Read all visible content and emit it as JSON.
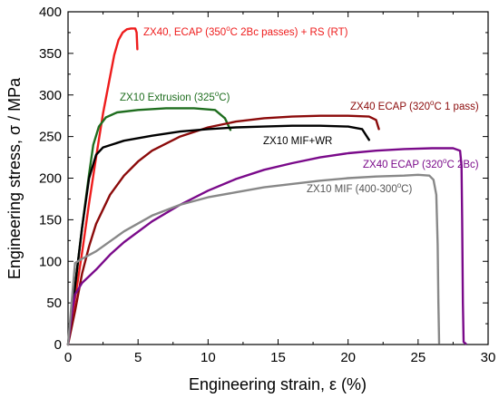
{
  "chart_data": {
    "type": "line",
    "xlabel": "Engineering strain, ε (%)",
    "ylabel": "Engineering stress, σ / MPa",
    "xlim": [
      0,
      30
    ],
    "ylim": [
      0,
      400
    ],
    "xticks": [
      0,
      5,
      10,
      15,
      20,
      25,
      30
    ],
    "yticks": [
      0,
      50,
      100,
      150,
      200,
      250,
      300,
      350,
      400
    ],
    "grid": false,
    "legend": "none",
    "series": [
      {
        "name": "ZX40, ECAP (350°C 2Bc passes) + RS (RT)",
        "color": "#ee1c1c",
        "points": [
          [
            0,
            0
          ],
          [
            0.5,
            55
          ],
          [
            1,
            110
          ],
          [
            1.5,
            170
          ],
          [
            2,
            225
          ],
          [
            2.5,
            278
          ],
          [
            3,
            322
          ],
          [
            3.3,
            348
          ],
          [
            3.6,
            366
          ],
          [
            3.9,
            375
          ],
          [
            4.2,
            379
          ],
          [
            4.5,
            380
          ],
          [
            4.8,
            380
          ],
          [
            4.9,
            375
          ],
          [
            4.95,
            355
          ]
        ]
      },
      {
        "name": "ZX10 Extrusion (325°C)",
        "color": "#1f6e1f",
        "points": [
          [
            0,
            0
          ],
          [
            0.5,
            70
          ],
          [
            1,
            140
          ],
          [
            1.5,
            205
          ],
          [
            1.8,
            240
          ],
          [
            2.2,
            262
          ],
          [
            2.7,
            273
          ],
          [
            3.5,
            279
          ],
          [
            5,
            282
          ],
          [
            7,
            284
          ],
          [
            9,
            284
          ],
          [
            10.5,
            282
          ],
          [
            11.2,
            272
          ],
          [
            11.6,
            258
          ]
        ]
      },
      {
        "name": "ZX40 ECAP (320°C 1 pass)",
        "color": "#8b0a0a",
        "points": [
          [
            0,
            0
          ],
          [
            0.5,
            40
          ],
          [
            1,
            85
          ],
          [
            1.5,
            118
          ],
          [
            2,
            145
          ],
          [
            3,
            180
          ],
          [
            4,
            203
          ],
          [
            5,
            220
          ],
          [
            6,
            233
          ],
          [
            8,
            250
          ],
          [
            10,
            261
          ],
          [
            12,
            268
          ],
          [
            14,
            272
          ],
          [
            16,
            274
          ],
          [
            18,
            275
          ],
          [
            20,
            275
          ],
          [
            21.5,
            274
          ],
          [
            22,
            270
          ],
          [
            22.2,
            259
          ]
        ]
      },
      {
        "name": "ZX10 MIF+WR",
        "color": "#000000",
        "points": [
          [
            0,
            0
          ],
          [
            0.5,
            70
          ],
          [
            1,
            140
          ],
          [
            1.5,
            200
          ],
          [
            2,
            228
          ],
          [
            2.5,
            237
          ],
          [
            4,
            245
          ],
          [
            6,
            251
          ],
          [
            8,
            256
          ],
          [
            10,
            259
          ],
          [
            12,
            261
          ],
          [
            14,
            262
          ],
          [
            16,
            263
          ],
          [
            18,
            263
          ],
          [
            20,
            262
          ],
          [
            21,
            259
          ],
          [
            21.5,
            246
          ]
        ]
      },
      {
        "name": "ZX40 ECAP (320°C 2Bc)",
        "color": "#7a0a8a",
        "points": [
          [
            0,
            0
          ],
          [
            0.3,
            40
          ],
          [
            0.5,
            60
          ],
          [
            1,
            74
          ],
          [
            2,
            90
          ],
          [
            3,
            108
          ],
          [
            4,
            123
          ],
          [
            6,
            148
          ],
          [
            8,
            168
          ],
          [
            10,
            185
          ],
          [
            12,
            199
          ],
          [
            14,
            210
          ],
          [
            16,
            218
          ],
          [
            18,
            225
          ],
          [
            20,
            230
          ],
          [
            22,
            233
          ],
          [
            24,
            235
          ],
          [
            26,
            236
          ],
          [
            27.5,
            236
          ],
          [
            28,
            233
          ],
          [
            28.1,
            215
          ],
          [
            28.15,
            150
          ],
          [
            28.2,
            50
          ],
          [
            28.25,
            3
          ],
          [
            28.4,
            1
          ]
        ]
      },
      {
        "name": "ZX10 MIF (400-300°C)",
        "color": "#888888",
        "points": [
          [
            0,
            0
          ],
          [
            0.5,
            98
          ],
          [
            1,
            103
          ],
          [
            2,
            112
          ],
          [
            4,
            136
          ],
          [
            6,
            155
          ],
          [
            8,
            168
          ],
          [
            10,
            177
          ],
          [
            12,
            183
          ],
          [
            14,
            189
          ],
          [
            16,
            193
          ],
          [
            18,
            197
          ],
          [
            20,
            200
          ],
          [
            22,
            202
          ],
          [
            24,
            203
          ],
          [
            25,
            204
          ],
          [
            25.8,
            203
          ],
          [
            26.1,
            198
          ],
          [
            26.3,
            180
          ],
          [
            26.4,
            120
          ],
          [
            26.45,
            50
          ],
          [
            26.5,
            2
          ]
        ]
      }
    ],
    "annotations": [
      {
        "id": "a1",
        "parts": [
          "ZX40, ECAP (350",
          "o",
          "C 2Bc passes) + RS (RT)"
        ],
        "color": "#ee1c1c"
      },
      {
        "id": "a2",
        "parts": [
          "ZX10 Extrusion (325",
          "o",
          "C)"
        ],
        "color": "#1f6e1f"
      },
      {
        "id": "a3",
        "parts": [
          "ZX40 ECAP (320",
          "o",
          "C 1 pass)"
        ],
        "color": "#8b0a0a"
      },
      {
        "id": "a4",
        "parts": [
          "ZX10 MIF+WR",
          "",
          ""
        ],
        "color": "#000000"
      },
      {
        "id": "a5",
        "parts": [
          "ZX40 ECAP (320",
          "o",
          "C 2Bc)"
        ],
        "color": "#7a0a8a"
      },
      {
        "id": "a6",
        "parts": [
          "ZX10 MIF (400-300",
          "o",
          "C)"
        ],
        "color": "#555555"
      }
    ]
  }
}
